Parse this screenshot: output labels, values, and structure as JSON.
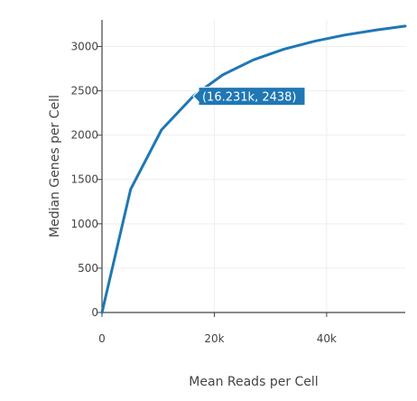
{
  "chart_data": {
    "type": "line",
    "xlabel": "Mean Reads per Cell",
    "ylabel": "Median Genes per Cell",
    "xlim": [
      0,
      54000
    ],
    "ylim": [
      0,
      3300
    ],
    "x_ticks": [
      {
        "value": 0,
        "label": "0"
      },
      {
        "value": 20000,
        "label": "20k"
      },
      {
        "value": 40000,
        "label": "40k"
      }
    ],
    "y_ticks": [
      {
        "value": 0,
        "label": "0"
      },
      {
        "value": 500,
        "label": "500"
      },
      {
        "value": 1000,
        "label": "1000"
      },
      {
        "value": 1500,
        "label": "1500"
      },
      {
        "value": 2000,
        "label": "2000"
      },
      {
        "value": 2500,
        "label": "2500"
      },
      {
        "value": 3000,
        "label": "3000"
      }
    ],
    "grid": true,
    "series": [
      {
        "color": "#1f77b4",
        "points": [
          {
            "x": 0,
            "y": 0
          },
          {
            "x": 5100,
            "y": 1390
          },
          {
            "x": 10600,
            "y": 2060
          },
          {
            "x": 16231,
            "y": 2438
          },
          {
            "x": 21500,
            "y": 2680
          },
          {
            "x": 27000,
            "y": 2850
          },
          {
            "x": 32400,
            "y": 2970
          },
          {
            "x": 37900,
            "y": 3060
          },
          {
            "x": 43300,
            "y": 3130
          },
          {
            "x": 48800,
            "y": 3185
          },
          {
            "x": 54000,
            "y": 3230
          }
        ]
      }
    ],
    "hover_label": {
      "text": "(16.231k, 2438)",
      "x": 16231,
      "y": 2438,
      "color": "#1f77b4"
    }
  }
}
